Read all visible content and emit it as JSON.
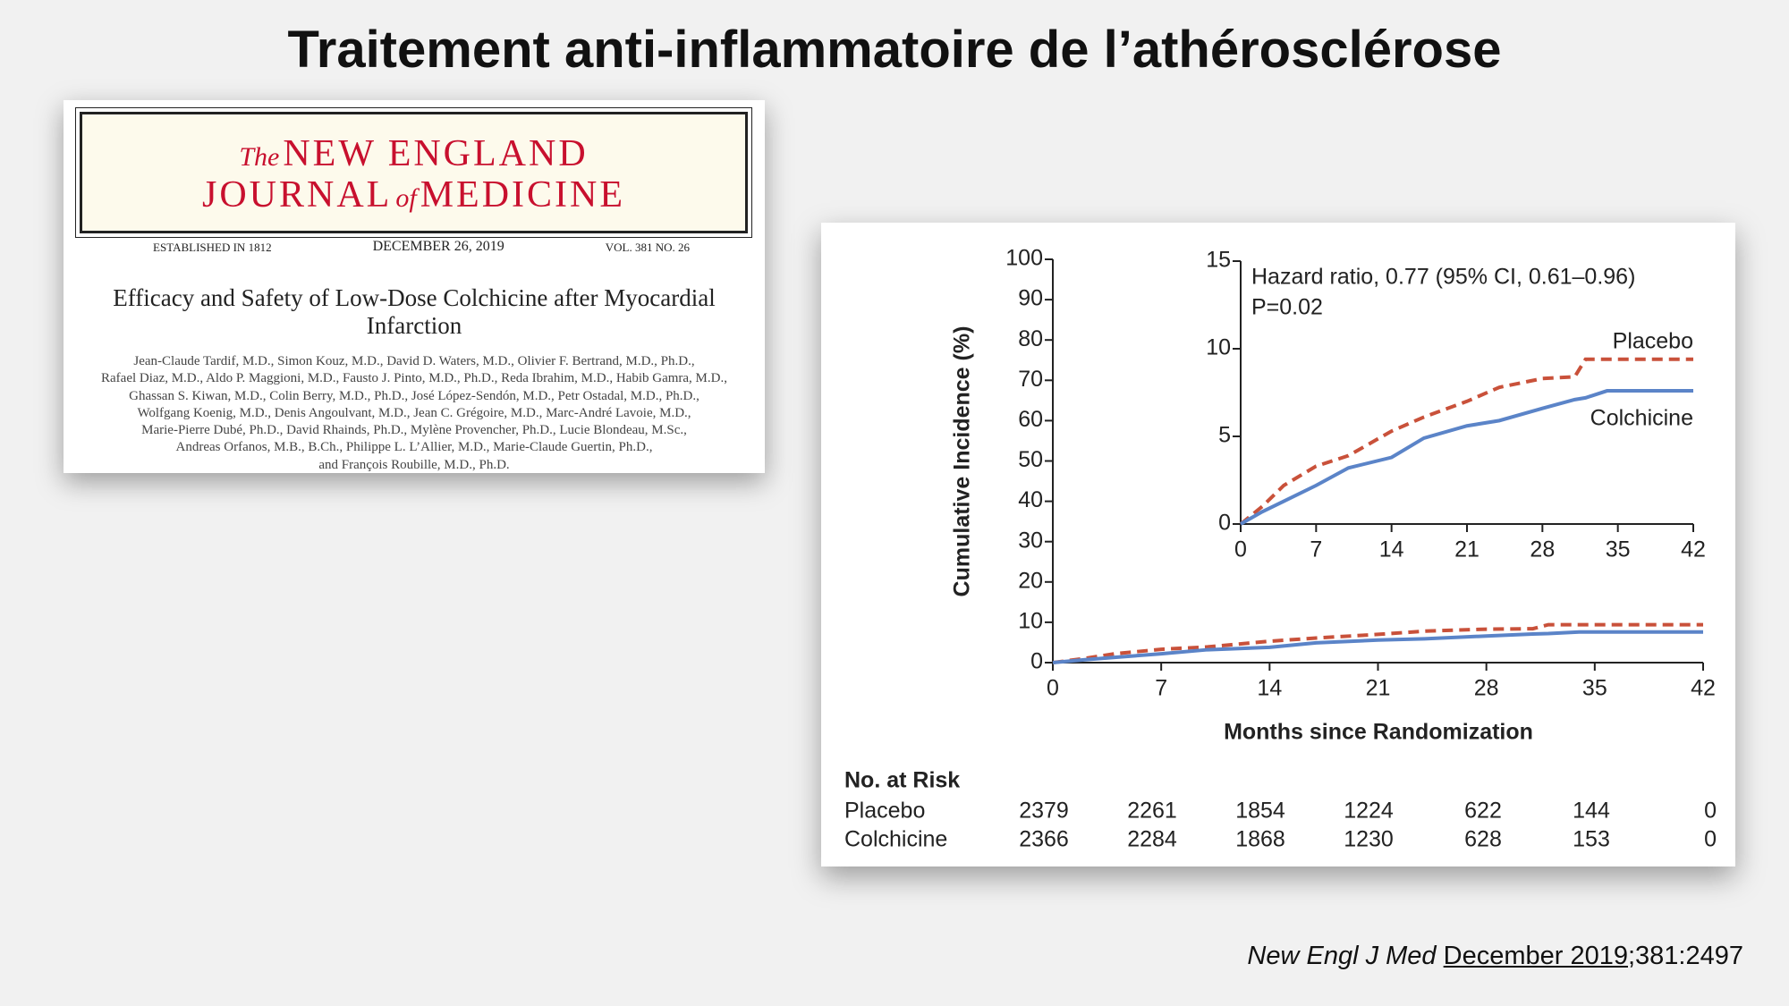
{
  "title": "Traitement anti-inflammatoire de l’athérosclérose",
  "article": {
    "journal": {
      "the": "The",
      "new_england": "NEW ENGLAND",
      "journal": "JOURNAL",
      "of": "of",
      "medicine": "MEDICINE"
    },
    "established": "ESTABLISHED IN 1812",
    "date": "DECEMBER 26, 2019",
    "volume": "VOL. 381 NO. 26",
    "title": "Efficacy and Safety of Low-Dose Colchicine after Myocardial Infarction",
    "authors": [
      "Jean-Claude Tardif, M.D., Simon Kouz, M.D., David D. Waters, M.D., Olivier F. Bertrand, M.D., Ph.D.,",
      "Rafael Diaz, M.D., Aldo P. Maggioni, M.D., Fausto J. Pinto, M.D., Ph.D., Reda Ibrahim, M.D., Habib Gamra, M.D.,",
      "Ghassan S. Kiwan, M.D., Colin Berry, M.D., Ph.D., José López-Sendón, M.D., Petr Ostadal, M.D., Ph.D.,",
      "Wolfgang Koenig, M.D., Denis Angoulvant, M.D., Jean C. Grégoire, M.D., Marc-André Lavoie, M.D.,",
      "Marie-Pierre Dubé, Ph.D., David Rhainds, Ph.D., Mylène Provencher, Ph.D., Lucie Blondeau, M.Sc.,",
      "Andreas Orfanos, M.B., B.Ch., Philippe L. L’Allier, M.D., Marie-Claude Guertin, Ph.D.,",
      "and François Roubille, M.D., Ph.D."
    ]
  },
  "chart_data": {
    "type": "line",
    "x_label": "Months since Randomization",
    "y_label": "Cumulative Incidence (%)",
    "x": [
      0,
      2,
      4,
      7,
      10,
      14,
      17,
      21,
      24,
      28,
      31,
      32,
      34,
      42
    ],
    "series": [
      {
        "name": "Placebo",
        "color": "#c9513a",
        "dashed": true,
        "values": [
          0,
          1.0,
          2.2,
          3.3,
          3.9,
          5.3,
          6.1,
          7.0,
          7.8,
          8.3,
          8.4,
          9.4,
          9.4,
          9.4
        ]
      },
      {
        "name": "Colchicine",
        "color": "#5b84c8",
        "dashed": false,
        "values": [
          0,
          0.7,
          1.3,
          2.2,
          3.2,
          3.8,
          4.9,
          5.6,
          5.9,
          6.6,
          7.1,
          7.2,
          7.6,
          7.6
        ]
      }
    ],
    "xlim": [
      0,
      42
    ],
    "xticks": [
      0,
      7,
      14,
      21,
      28,
      35,
      42
    ],
    "ylim": [
      0,
      100
    ],
    "yticks": [
      0,
      10,
      20,
      30,
      40,
      50,
      60,
      70,
      80,
      90,
      100
    ],
    "inset": {
      "xlim": [
        0,
        42
      ],
      "xticks": [
        0,
        7,
        14,
        21,
        28,
        35,
        42
      ],
      "ylim": [
        0,
        15
      ],
      "yticks": [
        0,
        5,
        10,
        15
      ],
      "annotations": [
        "Hazard ratio, 0.77 (95% CI, 0.61–0.96)",
        "P=0.02"
      ]
    },
    "risk_table": {
      "title": "No. at Risk",
      "rows": [
        {
          "label": "Placebo",
          "values": [
            2379,
            2261,
            1854,
            1224,
            622,
            144,
            0
          ]
        },
        {
          "label": "Colchicine",
          "values": [
            2366,
            2284,
            1868,
            1230,
            628,
            153,
            0
          ]
        }
      ]
    }
  },
  "citation": {
    "journal": "New Engl J Med",
    "date": "December 2019",
    "ref": ";381:2497"
  }
}
